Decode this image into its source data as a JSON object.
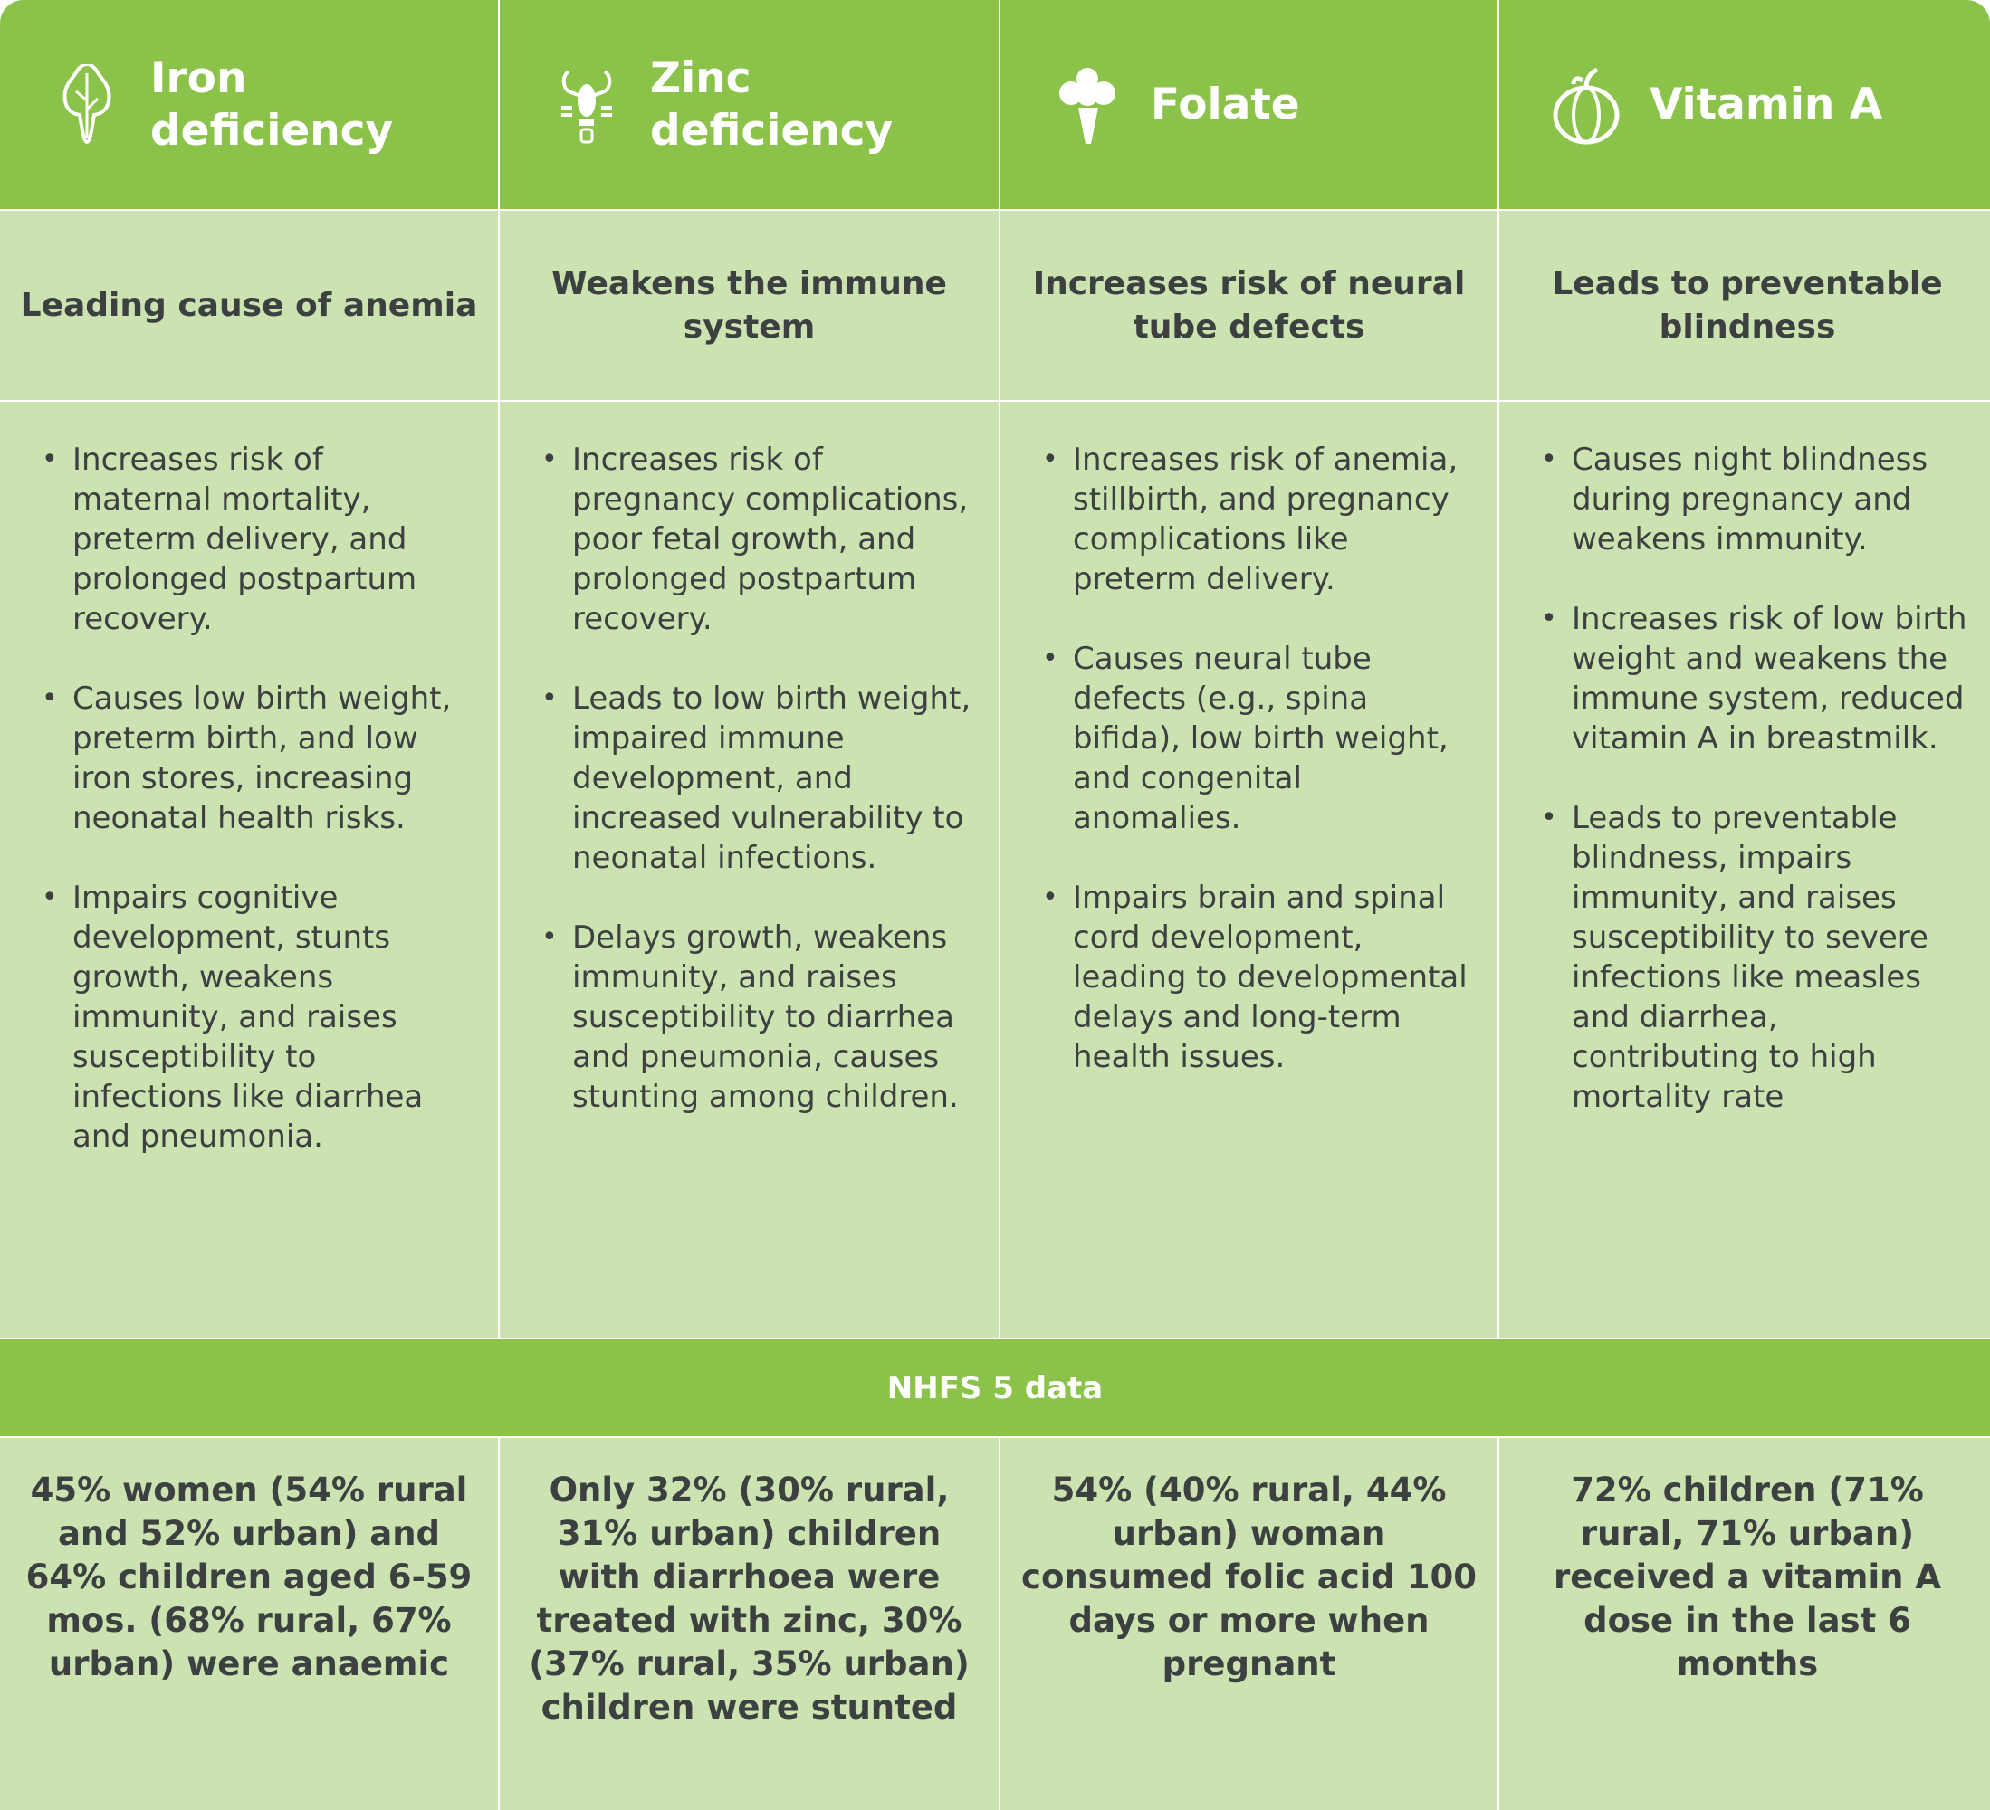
{
  "columns": [
    {
      "title": "Iron deficiency",
      "icon": "leafy-greens-icon",
      "summary": "Leading cause of anemia",
      "bullets": [
        "Increases risk of maternal mortality, preterm delivery, and prolonged postpartum recovery.",
        "Causes low birth weight, preterm birth, and low iron stores, increasing neonatal health risks.",
        "Impairs cognitive development, stunts growth, weakens immunity, and raises susceptibility to infections like diarrhea and pneumonia."
      ],
      "stat": "45% women (54% rural and 52% urban) and 64% children aged 6-59 mos. (68% rural, 67% urban) were anaemic"
    },
    {
      "title": "Zinc deficiency",
      "icon": "lobster-icon",
      "summary": "Weakens the immune system",
      "bullets": [
        "Increases risk of pregnancy complications, poor fetal growth, and prolonged postpartum recovery.",
        "Leads to low birth weight, impaired immune development, and increased vulnerability to neonatal infections.",
        "Delays growth, weakens immunity, and raises susceptibility to diarrhea and pneumonia, causes stunting among children."
      ],
      "stat": "Only 32% (30% rural, 31% urban) children with diarrhoea were treated with zinc, 30% (37% rural, 35% urban) children were stunted"
    },
    {
      "title": "Folate",
      "icon": "broccoli-icon",
      "summary": "Increases risk of neural tube defects",
      "bullets": [
        "Increases risk of anemia, stillbirth, and pregnancy complications like preterm delivery.",
        "Causes neural tube defects (e.g., spina bifida), low birth weight, and congenital anomalies.",
        "Impairs brain and spinal cord development, leading to developmental delays and long-term health issues."
      ],
      "stat": "54% (40% rural, 44% urban) woman consumed folic acid 100 days or more when pregnant"
    },
    {
      "title": "Vitamin A",
      "icon": "pumpkin-icon",
      "summary": "Leads to preventable blindness",
      "bullets": [
        "Causes night blindness during pregnancy and weakens immunity.",
        "Increases risk of low birth weight and weakens the immune system, reduced vitamin A in breastmilk.",
        "Leads to preventable blindness, impairs immunity, and raises susceptibility to severe infections like measles and diarrhea, contributing to high mortality rate"
      ],
      "stat": "72% children (71% rural, 71% urban) received a vitamin A dose in the last 6 months"
    }
  ],
  "band_label": "NHFS 5 data",
  "colors": {
    "header_green": "#8bc34a",
    "cell_green": "#cce3b1",
    "text": "#3d4040"
  }
}
